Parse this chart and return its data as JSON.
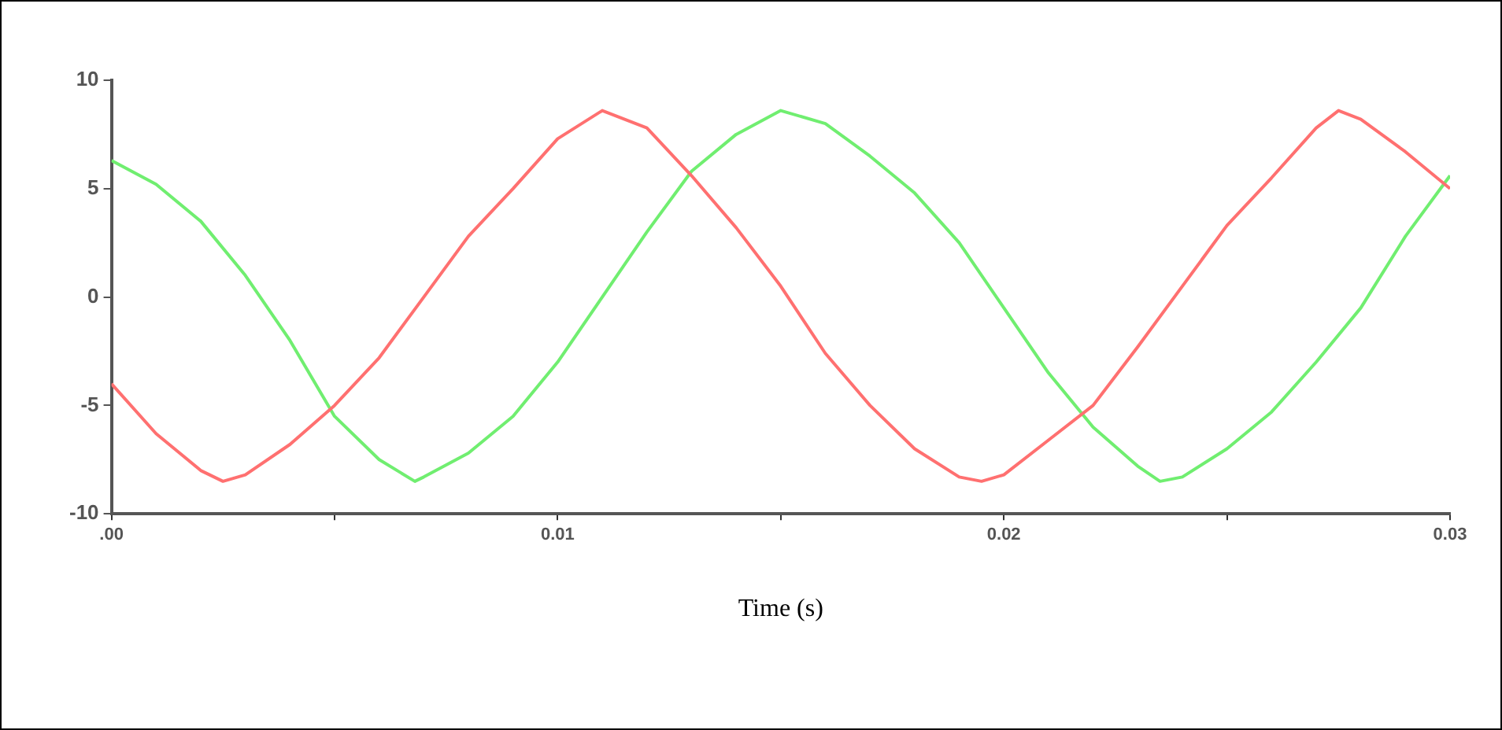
{
  "chart_data": {
    "type": "line",
    "xlabel": "Time (s)",
    "xlim": [
      0,
      0.03
    ],
    "xticks": [
      {
        "value": 0,
        "label": ".00"
      },
      {
        "value": 0.005,
        "label": null
      },
      {
        "value": 0.01,
        "label": "0.01"
      },
      {
        "value": 0.015,
        "label": null
      },
      {
        "value": 0.02,
        "label": "0.02"
      },
      {
        "value": 0.025,
        "label": null
      },
      {
        "value": 0.03,
        "label": "0.03"
      }
    ],
    "ylim": [
      -10,
      10
    ],
    "yticks": [
      -10,
      -5,
      0,
      5,
      10
    ],
    "grid": false,
    "legend": false,
    "marker": "none",
    "line_style": "solid",
    "series": [
      {
        "color": "#ff7070",
        "x": [
          0,
          0.001,
          0.002,
          0.0025,
          0.003,
          0.004,
          0.005,
          0.006,
          0.007,
          0.008,
          0.009,
          0.01,
          0.011,
          0.012,
          0.013,
          0.014,
          0.015,
          0.016,
          0.017,
          0.018,
          0.019,
          0.0195,
          0.02,
          0.021,
          0.022,
          0.023,
          0.024,
          0.025,
          0.026,
          0.027,
          0.0275,
          0.028,
          0.029,
          0.03
        ],
        "values": [
          -4.0,
          -6.3,
          -8.0,
          -8.5,
          -8.2,
          -6.8,
          -5.0,
          -2.8,
          0.0,
          2.8,
          5.0,
          7.3,
          8.6,
          7.8,
          5.6,
          3.2,
          0.5,
          -2.6,
          -5.0,
          -7.0,
          -8.3,
          -8.5,
          -8.2,
          -6.6,
          -5.0,
          -2.3,
          0.5,
          3.3,
          5.5,
          7.8,
          8.6,
          8.2,
          6.7,
          5.0
        ]
      },
      {
        "color": "#70ee70",
        "x": [
          0,
          0.001,
          0.002,
          0.003,
          0.004,
          0.005,
          0.006,
          0.0068,
          0.007,
          0.008,
          0.009,
          0.01,
          0.011,
          0.012,
          0.013,
          0.014,
          0.015,
          0.016,
          0.017,
          0.018,
          0.019,
          0.02,
          0.021,
          0.022,
          0.023,
          0.0235,
          0.024,
          0.025,
          0.026,
          0.027,
          0.028,
          0.029,
          0.03
        ],
        "values": [
          6.3,
          5.2,
          3.5,
          1.0,
          -2.0,
          -5.5,
          -7.5,
          -8.5,
          -8.3,
          -7.2,
          -5.5,
          -3.0,
          0.0,
          3.0,
          5.8,
          7.5,
          8.6,
          8.0,
          6.5,
          4.8,
          2.5,
          -0.5,
          -3.5,
          -6.0,
          -7.8,
          -8.5,
          -8.3,
          -7.0,
          -5.3,
          -3.0,
          -0.5,
          2.8,
          5.6
        ]
      }
    ]
  }
}
